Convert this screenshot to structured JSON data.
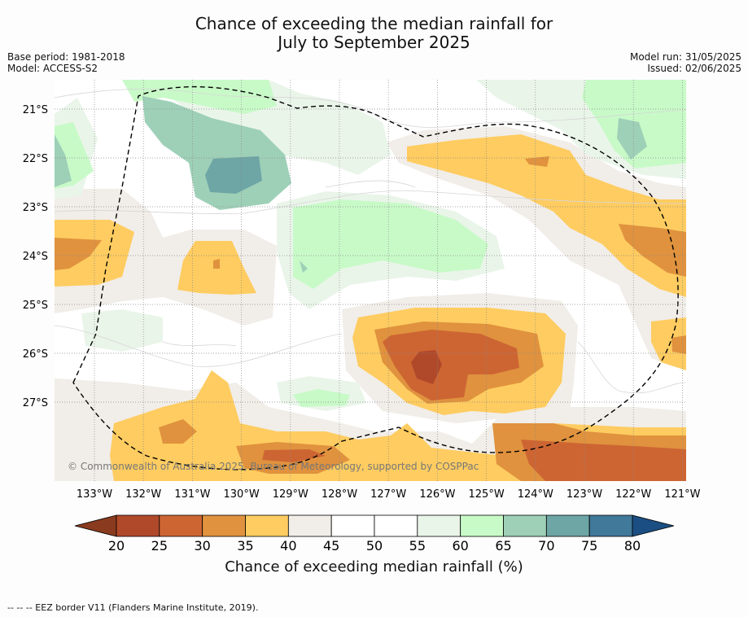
{
  "title_line1": "Chance of exceeding the median rainfall for",
  "title_line2": "July to September 2025",
  "base_period": "Base period: 1981-2018",
  "model": "Model: ACCESS-S2",
  "model_run": "Model run: 31/05/2025",
  "issued": "Issued: 02/06/2025",
  "copyright": "© Commonwealth of Australia 2025, Bureau of Meteorology, supported by COSPPac",
  "x_ticks": [
    "133°W",
    "132°W",
    "131°W",
    "130°W",
    "129°W",
    "128°W",
    "127°W",
    "126°W",
    "125°W",
    "124°W",
    "123°W",
    "122°W",
    "121°W"
  ],
  "y_ticks": [
    "21°S",
    "22°S",
    "23°S",
    "24°S",
    "25°S",
    "26°S",
    "27°S"
  ],
  "colorbar": {
    "title": "Chance of exceeding median rainfall (%)",
    "ticks": [
      "20",
      "25",
      "30",
      "35",
      "40",
      "45",
      "50",
      "55",
      "60",
      "65",
      "70",
      "75",
      "80"
    ],
    "colors": {
      "below20": "#8a3a1e",
      "20-25": "#b0492a",
      "25-30": "#cd6533",
      "30-35": "#e0923e",
      "35-40": "#fecc60",
      "40-45": "#f1ede8",
      "45-50": "#ffffff",
      "50-55": "#ffffff",
      "55-60": "#eaf5ea",
      "60-65": "#c8fac8",
      "65-70": "#9ed0b8",
      "70-75": "#6ea5a5",
      "75-80": "#40799a",
      "above80": "#1b4e82"
    }
  },
  "footer": "--  --  -- EEZ border V11 (Flanders Marine Institute, 2019)."
}
